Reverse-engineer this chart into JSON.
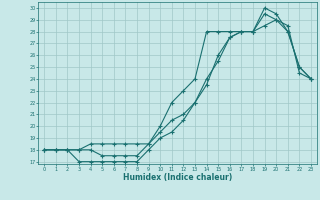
{
  "xlabel": "Humidex (Indice chaleur)",
  "bg_color": "#c8e8e8",
  "grid_color": "#a0c8c8",
  "line_color": "#1a7070",
  "xlim": [
    -0.5,
    23.5
  ],
  "ylim": [
    16.8,
    30.5
  ],
  "xticks": [
    0,
    1,
    2,
    3,
    4,
    5,
    6,
    7,
    8,
    9,
    10,
    11,
    12,
    13,
    14,
    15,
    16,
    17,
    18,
    19,
    20,
    21,
    22,
    23
  ],
  "yticks": [
    17,
    18,
    19,
    20,
    21,
    22,
    23,
    24,
    25,
    26,
    27,
    28,
    29,
    30
  ],
  "line1_x": [
    0,
    1,
    2,
    3,
    4,
    5,
    6,
    7,
    8,
    9,
    10,
    11,
    12,
    13,
    14,
    15,
    16,
    17,
    18,
    19,
    20,
    21,
    22,
    23
  ],
  "line1_y": [
    18,
    18,
    18,
    17,
    17,
    17,
    17,
    17,
    17,
    18,
    19,
    19.5,
    20.5,
    22,
    23.5,
    26,
    27.5,
    28,
    28,
    28.5,
    29,
    28.5,
    24.5,
    24
  ],
  "line2_x": [
    0,
    1,
    2,
    3,
    4,
    5,
    6,
    7,
    8,
    9,
    10,
    11,
    12,
    13,
    14,
    15,
    16,
    17,
    18,
    19,
    20,
    21,
    22,
    23
  ],
  "line2_y": [
    18,
    18,
    18,
    18,
    18,
    17.5,
    17.5,
    17.5,
    17.5,
    18.5,
    19.5,
    20.5,
    21,
    22,
    24,
    25.5,
    27.5,
    28,
    28,
    29.5,
    29,
    28,
    25,
    24
  ],
  "line3_x": [
    0,
    1,
    2,
    3,
    4,
    5,
    6,
    7,
    8,
    9,
    10,
    11,
    12,
    13,
    14,
    15,
    16,
    17,
    18,
    19,
    20,
    21,
    22,
    23
  ],
  "line3_y": [
    18,
    18,
    18,
    18,
    18.5,
    18.5,
    18.5,
    18.5,
    18.5,
    18.5,
    20,
    22,
    23,
    24,
    28,
    28,
    28,
    28,
    28,
    30,
    29.5,
    28,
    25,
    24
  ]
}
